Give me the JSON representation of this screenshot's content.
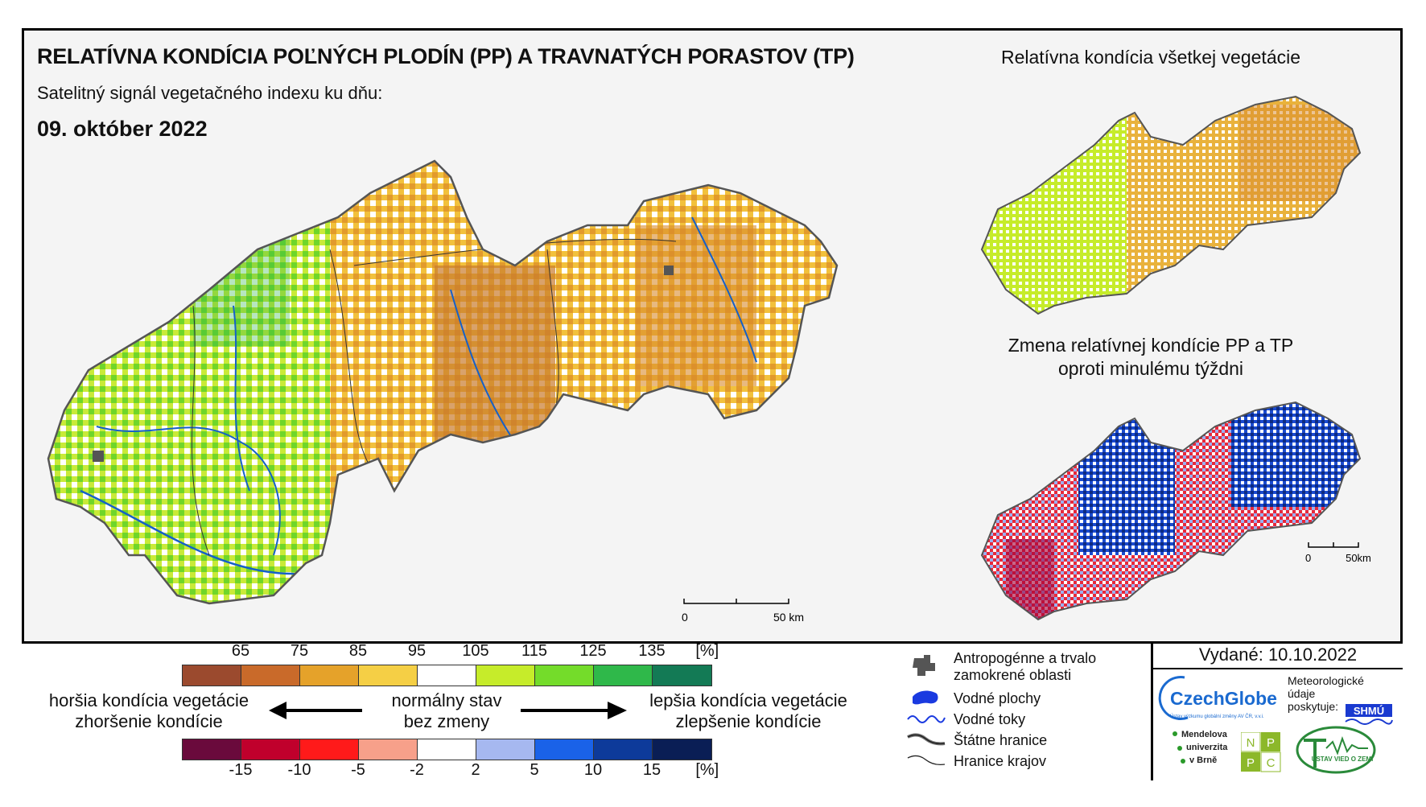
{
  "header": {
    "title": "RELATÍVNA KONDÍCIA POĽNÝCH PLODÍN (PP) A TRAVNATÝCH PORASTOV (TP)",
    "subtitle": "Satelitný signál vegetačného indexu ku dňu:",
    "date": "09. október 2022"
  },
  "insets": {
    "all_vegetation_title": "Relatívna kondícia všetkej vegetácie",
    "change_title_line1": "Zmena relatívnej kondície PP a TP",
    "change_title_line2": "oproti minulému týždni"
  },
  "scalebar_main": {
    "zero": "0",
    "end": "50 km"
  },
  "scalebar_inset": {
    "zero": "0",
    "end": "50km"
  },
  "legend": {
    "condition_ticks": [
      "65",
      "75",
      "85",
      "95",
      "105",
      "115",
      "125",
      "135",
      "[%]"
    ],
    "condition_colors": [
      "#9b4a2e",
      "#c96a2a",
      "#e5a22a",
      "#f5cf45",
      "#ffffff",
      "#c6ec2a",
      "#74dc2a",
      "#2fb84a",
      "#137a55"
    ],
    "change_ticks": [
      "-15",
      "-10",
      "-5",
      "-2",
      "2",
      "5",
      "10",
      "15",
      "[%]"
    ],
    "change_colors": [
      "#6a0a3c",
      "#c0002c",
      "#ff1a1a",
      "#f7a08a",
      "#ffffff",
      "#a6b8f0",
      "#1a62e8",
      "#0d3a9a",
      "#0a1e55"
    ],
    "worse_line1": "horšia kondícia vegetácie",
    "worse_line2": "zhoršenie kondície",
    "normal_line1": "normálny stav",
    "normal_line2": "bez zmeny",
    "better_line1": "lepšia kondícia vegetácie",
    "better_line2": "zlepšenie kondície"
  },
  "symbols": {
    "anthropogenic_line1": "Antropogénne a trvalo",
    "anthropogenic_line2": "zamokrené oblasti",
    "water_bodies": "Vodné plochy",
    "water_streams": "Vodné toky",
    "state_border": "Štátne hranice",
    "region_border": "Hranice krajov"
  },
  "issued": {
    "label": "Vydané: 10.10.2022"
  },
  "logos": {
    "czechglobe": "CzechGlobe",
    "czechglobe_sub": "Ústav výzkumu globální změny AV ČR, v.v.i.",
    "meteo_line1": "Meteorologické",
    "meteo_line2": "údaje",
    "meteo_line3": "poskytuje:",
    "shmu": "SHMÚ",
    "mendel_line1": "Mendelova",
    "mendel_line2": "univerzita",
    "mendel_line3": "v Brně",
    "nppc_n": "N",
    "nppc_p1": "P",
    "nppc_p2": "P",
    "nppc_c": "C",
    "uvz": "ÚSTAV VIED O ZEMI"
  }
}
